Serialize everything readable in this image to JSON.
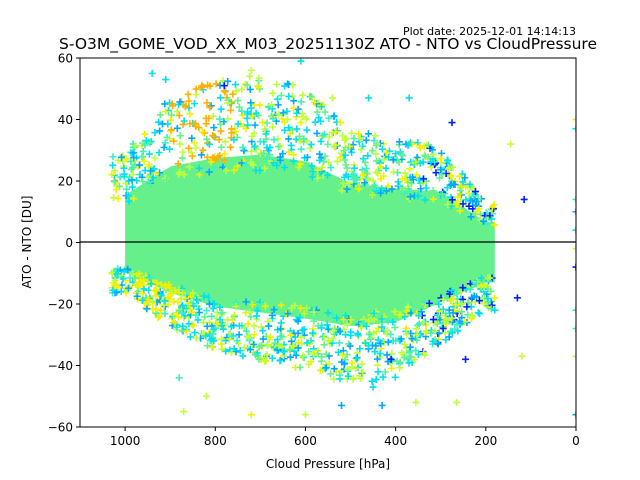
{
  "chart_data": {
    "type": "scatter",
    "title": "S-O3M_GOME_VOD_XX_M03_20251130Z ATO - NTO vs CloudPressure",
    "subtitle": "Plot date: 2025-12-01 14:14:13",
    "xlabel": "Cloud Pressure [hPa]",
    "ylabel": "ATO - NTO [DU]",
    "xlim": [
      1100,
      0
    ],
    "ylim": [
      -60,
      60
    ],
    "x_ticks": [
      1000,
      800,
      600,
      400,
      200,
      0
    ],
    "y_ticks": [
      60,
      40,
      20,
      0,
      -20,
      -40,
      -60
    ],
    "x_tick_labels": [
      "1000",
      "800",
      "600",
      "400",
      "200",
      "0"
    ],
    "y_tick_labels": [
      "60",
      "40",
      "20",
      "0",
      "−20",
      "−40",
      "−60"
    ],
    "reference_line_y": 0,
    "marker": "+",
    "colormap": "jet",
    "colors": {
      "core": "#66f08c",
      "cyan": "#00e0f0",
      "lightblue": "#00a8ff",
      "blue": "#0020ff",
      "yellow": "#f0f000",
      "yellowgreen": "#c0ff38",
      "orange": "#ffb000",
      "aqua": "#3cf0c0"
    },
    "dense_region": {
      "x_range": [
        1000,
        180
      ],
      "y_center": 0,
      "y_upper_envelope": [
        [
          1000,
          28
        ],
        [
          900,
          45
        ],
        [
          800,
          50
        ],
        [
          700,
          52
        ],
        [
          600,
          48
        ],
        [
          500,
          35
        ],
        [
          400,
          32
        ],
        [
          300,
          30
        ],
        [
          200,
          12
        ]
      ],
      "y_lower_envelope": [
        [
          1000,
          -15
        ],
        [
          900,
          -25
        ],
        [
          800,
          -32
        ],
        [
          700,
          -35
        ],
        [
          600,
          -38
        ],
        [
          500,
          -42
        ],
        [
          400,
          -40
        ],
        [
          300,
          -30
        ],
        [
          200,
          -20
        ]
      ]
    },
    "outliers": [
      {
        "x": 940,
        "y": 55,
        "c": "cyan"
      },
      {
        "x": 910,
        "y": 53,
        "c": "cyan"
      },
      {
        "x": 830,
        "y": 51,
        "c": "orange"
      },
      {
        "x": 780,
        "y": 51,
        "c": "blue"
      },
      {
        "x": 720,
        "y": 56,
        "c": "yellowgreen"
      },
      {
        "x": 610,
        "y": 59,
        "c": "cyan"
      },
      {
        "x": 540,
        "y": 47,
        "c": "yellowgreen"
      },
      {
        "x": 460,
        "y": 47,
        "c": "cyan"
      },
      {
        "x": 370,
        "y": 47,
        "c": "cyan"
      },
      {
        "x": 275,
        "y": 39,
        "c": "blue"
      },
      {
        "x": 145,
        "y": 32,
        "c": "yellowgreen"
      },
      {
        "x": 115,
        "y": 14,
        "c": "blue"
      },
      {
        "x": 130,
        "y": -18,
        "c": "blue"
      },
      {
        "x": 180,
        "y": -22,
        "c": "cyan"
      },
      {
        "x": 120,
        "y": -37,
        "c": "yellowgreen"
      },
      {
        "x": 245,
        "y": -38,
        "c": "blue"
      },
      {
        "x": 410,
        "y": -38,
        "c": "blue"
      },
      {
        "x": 450,
        "y": -47,
        "c": "cyan"
      },
      {
        "x": 430,
        "y": -53,
        "c": "lightblue"
      },
      {
        "x": 520,
        "y": -53,
        "c": "lightblue"
      },
      {
        "x": 600,
        "y": -56,
        "c": "yellowgreen"
      },
      {
        "x": 720,
        "y": -56,
        "c": "yellow"
      },
      {
        "x": 820,
        "y": -50,
        "c": "yellowgreen"
      },
      {
        "x": 870,
        "y": -55,
        "c": "yellowgreen"
      },
      {
        "x": 880,
        "y": -44,
        "c": "aqua"
      },
      {
        "x": 265,
        "y": -52,
        "c": "yellowgreen"
      },
      {
        "x": 355,
        "y": -52,
        "c": "yellowgreen"
      },
      {
        "x": 0,
        "y": 40,
        "c": "yellow"
      },
      {
        "x": 0,
        "y": 37,
        "c": "cyan"
      },
      {
        "x": 0,
        "y": 14,
        "c": "aqua"
      },
      {
        "x": 0,
        "y": 10,
        "c": "lightblue"
      },
      {
        "x": 0,
        "y": 4,
        "c": "cyan"
      },
      {
        "x": 0,
        "y": -2,
        "c": "yellow"
      },
      {
        "x": 0,
        "y": -8,
        "c": "blue"
      },
      {
        "x": 0,
        "y": -22,
        "c": "aqua"
      },
      {
        "x": 0,
        "y": -28,
        "c": "aqua"
      },
      {
        "x": 0,
        "y": -37,
        "c": "yellowgreen"
      },
      {
        "x": 0,
        "y": -56,
        "c": "lightblue"
      }
    ]
  }
}
